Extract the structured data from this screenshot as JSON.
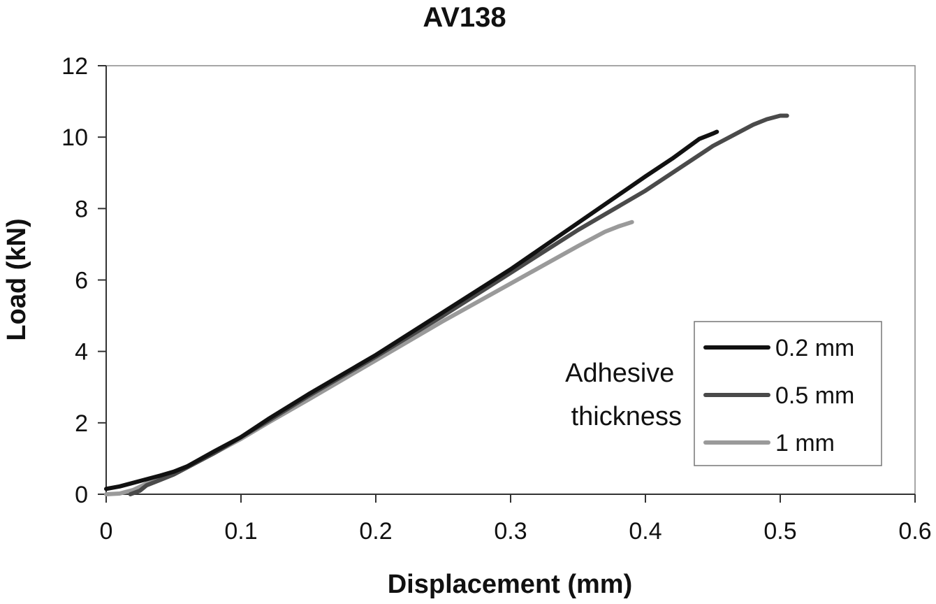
{
  "chart_data": {
    "type": "line",
    "title": "AV138",
    "xlabel": "Displacement (mm)",
    "ylabel": "Load (kN)",
    "xlim": [
      0,
      0.6
    ],
    "ylim": [
      0,
      12
    ],
    "xticks": [
      "0",
      "0.1",
      "0.2",
      "0.3",
      "0.4",
      "0.5",
      "0.6"
    ],
    "yticks": [
      "0",
      "2",
      "4",
      "6",
      "8",
      "10",
      "12"
    ],
    "grid": false,
    "legend_placement": "bottom-right",
    "legend_title": "Adhesive\nthickness",
    "legend_title_lines": [
      "Adhesive",
      "thickness"
    ],
    "series": [
      {
        "name": "0.2 mm",
        "color": "#111111",
        "x": [
          0,
          0.01,
          0.02,
          0.03,
          0.04,
          0.05,
          0.06,
          0.08,
          0.1,
          0.12,
          0.15,
          0.2,
          0.25,
          0.3,
          0.35,
          0.4,
          0.42,
          0.44,
          0.45,
          0.453
        ],
        "y": [
          0.15,
          0.22,
          0.32,
          0.42,
          0.52,
          0.63,
          0.78,
          1.2,
          1.6,
          2.1,
          2.8,
          3.9,
          5.1,
          6.3,
          7.6,
          8.9,
          9.4,
          9.95,
          10.1,
          10.15
        ]
      },
      {
        "name": "0.5 mm",
        "color": "#4a4a4a",
        "x": [
          0.018,
          0.025,
          0.03,
          0.04,
          0.05,
          0.06,
          0.08,
          0.1,
          0.12,
          0.15,
          0.2,
          0.25,
          0.3,
          0.35,
          0.4,
          0.45,
          0.48,
          0.49,
          0.5,
          0.505
        ],
        "y": [
          0.0,
          0.1,
          0.25,
          0.4,
          0.55,
          0.75,
          1.15,
          1.6,
          2.05,
          2.75,
          3.85,
          5.0,
          6.2,
          7.4,
          8.5,
          9.75,
          10.35,
          10.5,
          10.6,
          10.6
        ]
      },
      {
        "name": "1 mm",
        "color": "#9a9a9a",
        "x": [
          0,
          0.01,
          0.02,
          0.03,
          0.04,
          0.05,
          0.06,
          0.08,
          0.1,
          0.12,
          0.15,
          0.2,
          0.25,
          0.3,
          0.35,
          0.37,
          0.38,
          0.39
        ],
        "y": [
          0.0,
          0.02,
          0.12,
          0.3,
          0.45,
          0.6,
          0.78,
          1.15,
          1.55,
          2.0,
          2.65,
          3.75,
          4.85,
          5.9,
          6.95,
          7.35,
          7.5,
          7.62
        ]
      }
    ]
  }
}
